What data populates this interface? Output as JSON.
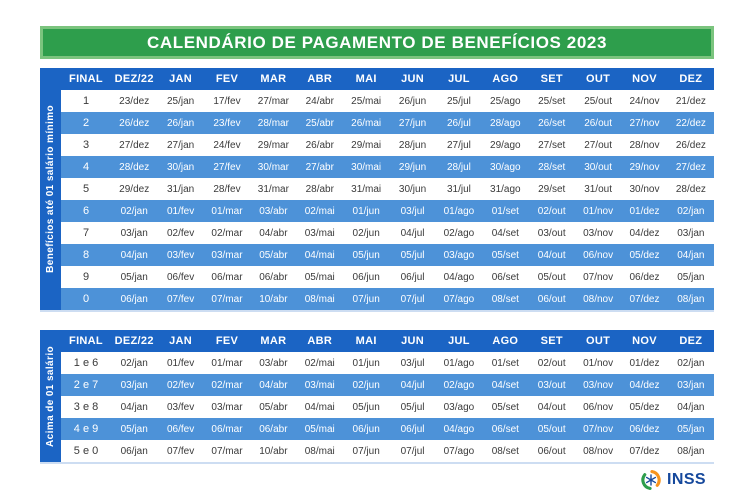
{
  "title": "CALENDÁRIO DE PAGAMENTO DE BENEFÍCIOS 2023",
  "columns": [
    "FINAL",
    "DEZ/22",
    "JAN",
    "FEV",
    "MAR",
    "ABR",
    "MAI",
    "JUN",
    "JUL",
    "AGO",
    "SET",
    "OUT",
    "NOV",
    "DEZ"
  ],
  "tables": [
    {
      "side_label": "Benefícios até 01 salário mínimo",
      "rows": [
        {
          "final": "1",
          "dates": [
            "23/dez",
            "25/jan",
            "17/fev",
            "27/mar",
            "24/abr",
            "25/mai",
            "26/jun",
            "25/jul",
            "25/ago",
            "25/set",
            "25/out",
            "24/nov",
            "21/dez"
          ]
        },
        {
          "final": "2",
          "dates": [
            "26/dez",
            "26/jan",
            "23/fev",
            "28/mar",
            "25/abr",
            "26/mai",
            "27/jun",
            "26/jul",
            "28/ago",
            "26/set",
            "26/out",
            "27/nov",
            "22/dez"
          ]
        },
        {
          "final": "3",
          "dates": [
            "27/dez",
            "27/jan",
            "24/fev",
            "29/mar",
            "26/abr",
            "29/mai",
            "28/jun",
            "27/jul",
            "29/ago",
            "27/set",
            "27/out",
            "28/nov",
            "26/dez"
          ]
        },
        {
          "final": "4",
          "dates": [
            "28/dez",
            "30/jan",
            "27/fev",
            "30/mar",
            "27/abr",
            "30/mai",
            "29/jun",
            "28/jul",
            "30/ago",
            "28/set",
            "30/out",
            "29/nov",
            "27/dez"
          ]
        },
        {
          "final": "5",
          "dates": [
            "29/dez",
            "31/jan",
            "28/fev",
            "31/mar",
            "28/abr",
            "31/mai",
            "30/jun",
            "31/jul",
            "31/ago",
            "29/set",
            "31/out",
            "30/nov",
            "28/dez"
          ]
        },
        {
          "final": "6",
          "dates": [
            "02/jan",
            "01/fev",
            "01/mar",
            "03/abr",
            "02/mai",
            "01/jun",
            "03/jul",
            "01/ago",
            "01/set",
            "02/out",
            "01/nov",
            "01/dez",
            "02/jan"
          ]
        },
        {
          "final": "7",
          "dates": [
            "03/jan",
            "02/fev",
            "02/mar",
            "04/abr",
            "03/mai",
            "02/jun",
            "04/jul",
            "02/ago",
            "04/set",
            "03/out",
            "03/nov",
            "04/dez",
            "03/jan"
          ]
        },
        {
          "final": "8",
          "dates": [
            "04/jan",
            "03/fev",
            "03/mar",
            "05/abr",
            "04/mai",
            "05/jun",
            "05/jul",
            "03/ago",
            "05/set",
            "04/out",
            "06/nov",
            "05/dez",
            "04/jan"
          ]
        },
        {
          "final": "9",
          "dates": [
            "05/jan",
            "06/fev",
            "06/mar",
            "06/abr",
            "05/mai",
            "06/jun",
            "06/jul",
            "04/ago",
            "06/set",
            "05/out",
            "07/nov",
            "06/dez",
            "05/jan"
          ]
        },
        {
          "final": "0",
          "dates": [
            "06/jan",
            "07/fev",
            "07/mar",
            "10/abr",
            "08/mai",
            "07/jun",
            "07/jul",
            "07/ago",
            "08/set",
            "06/out",
            "08/nov",
            "07/dez",
            "08/jan"
          ]
        }
      ]
    },
    {
      "side_label": "Acima de 01 salário",
      "rows": [
        {
          "final": "1 e 6",
          "dates": [
            "02/jan",
            "01/fev",
            "01/mar",
            "03/abr",
            "02/mai",
            "01/jun",
            "03/jul",
            "01/ago",
            "01/set",
            "02/out",
            "01/nov",
            "01/dez",
            "02/jan"
          ]
        },
        {
          "final": "2 e 7",
          "dates": [
            "03/jan",
            "02/fev",
            "02/mar",
            "04/abr",
            "03/mai",
            "02/jun",
            "04/jul",
            "02/ago",
            "04/set",
            "03/out",
            "03/nov",
            "04/dez",
            "03/jan"
          ]
        },
        {
          "final": "3 e 8",
          "dates": [
            "04/jan",
            "03/fev",
            "03/mar",
            "05/abr",
            "04/mai",
            "05/jun",
            "05/jul",
            "03/ago",
            "05/set",
            "04/out",
            "06/nov",
            "05/dez",
            "04/jan"
          ]
        },
        {
          "final": "4 e 9",
          "dates": [
            "05/jan",
            "06/fev",
            "06/mar",
            "06/abr",
            "05/mai",
            "06/jun",
            "06/jul",
            "04/ago",
            "06/set",
            "05/out",
            "07/nov",
            "06/dez",
            "05/jan"
          ]
        },
        {
          "final": "5 e 0",
          "dates": [
            "06/jan",
            "07/fev",
            "07/mar",
            "10/abr",
            "08/mai",
            "07/jun",
            "07/jul",
            "07/ago",
            "08/set",
            "06/out",
            "08/nov",
            "07/dez",
            "08/jan"
          ]
        }
      ]
    }
  ],
  "logo": {
    "text": "INSS",
    "icon": "inss-emblem-icon"
  },
  "colors": {
    "banner_green": "#2E9E4C",
    "banner_border_green": "#7BC47E",
    "header_blue": "#1B64C4",
    "row_alt_blue": "#4D92D8",
    "text_dark": "#3A3A3A",
    "logo_blue": "#15489C",
    "logo_orange": "#F7941D",
    "logo_green": "#2E9E4C"
  }
}
